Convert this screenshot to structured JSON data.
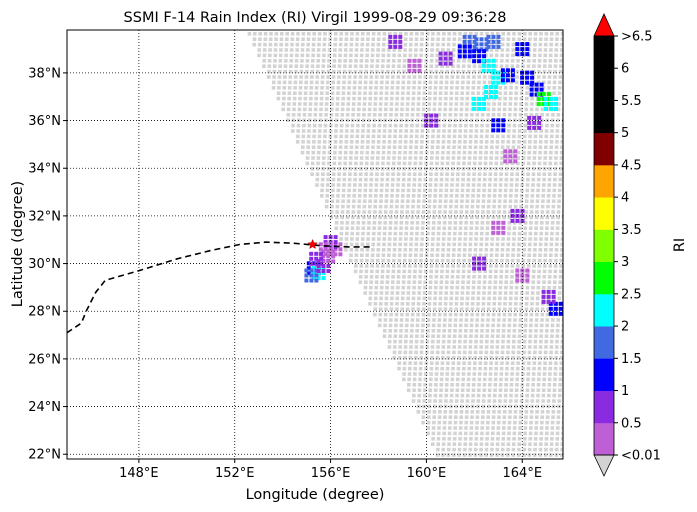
{
  "chart_data": {
    "type": "scatter",
    "title": "SSMI F-14 Rain Index (RI) Virgil 1999-08-29 09:36:28",
    "xlabel": "Longitude (degree)",
    "ylabel": "Latitude (degree)",
    "xlim": [
      145.0,
      165.7
    ],
    "ylim": [
      21.8,
      39.8
    ],
    "x_ticks": [
      148,
      152,
      156,
      160,
      164
    ],
    "x_tick_labels": [
      "148°E",
      "152°E",
      "156°E",
      "160°E",
      "164°E"
    ],
    "y_ticks": [
      22,
      24,
      26,
      28,
      30,
      32,
      34,
      36,
      38
    ],
    "y_tick_labels": [
      "22°N",
      "24°N",
      "26°N",
      "28°N",
      "30°N",
      "32°N",
      "34°N",
      "36°N",
      "38°N"
    ],
    "grid": "dotted",
    "colorbar": {
      "label": "RI",
      "levels": [
        0.01,
        0.5,
        1,
        1.5,
        2,
        2.5,
        3,
        3.5,
        4,
        4.5,
        5,
        5.5,
        6,
        6.5
      ],
      "tick_labels": [
        "<0.01",
        "0.5",
        "1",
        "1.5",
        "2",
        "2.5",
        "3",
        "3.5",
        "4",
        "4.5",
        "5",
        "5.5",
        "6",
        ">6.5"
      ],
      "colors": [
        "#bf5fd6",
        "#8a2be2",
        "#0000ff",
        "#4169e1",
        "#00ffff",
        "#00ff00",
        "#7fff00",
        "#ffff00",
        "#ffa500",
        "#800000",
        "#000000",
        "#000000",
        "#000000"
      ],
      "under_color": "#d3d3d3",
      "over_color": "#ff0000"
    },
    "swath": {
      "description_color": "#d3d3d3",
      "corners": [
        [
          152.5,
          39.8
        ],
        [
          165.7,
          39.8
        ],
        [
          165.7,
          21.8
        ],
        [
          160.5,
          21.8
        ]
      ]
    },
    "storm_track": {
      "name": "Virgil",
      "points": [
        [
          145.0,
          27.1
        ],
        [
          145.6,
          27.5
        ],
        [
          145.8,
          28.0
        ],
        [
          146.2,
          28.8
        ],
        [
          146.6,
          29.3
        ],
        [
          148.0,
          29.7
        ],
        [
          149.6,
          30.2
        ],
        [
          151.0,
          30.55
        ],
        [
          152.2,
          30.8
        ],
        [
          153.3,
          30.9
        ],
        [
          154.5,
          30.85
        ],
        [
          155.6,
          30.75
        ],
        [
          156.7,
          30.7
        ],
        [
          157.8,
          30.7
        ]
      ],
      "current_position": [
        155.25,
        30.8
      ]
    },
    "rain_cells": [
      {
        "lon": 155.3,
        "lat": 29.8,
        "ri": 1.2
      },
      {
        "lon": 155.5,
        "lat": 29.6,
        "ri": 2.2
      },
      {
        "lon": 155.2,
        "lat": 29.5,
        "ri": 1.7
      },
      {
        "lon": 155.7,
        "lat": 29.9,
        "ri": 0.7
      },
      {
        "lon": 155.9,
        "lat": 30.3,
        "ri": 0.4
      },
      {
        "lon": 156.2,
        "lat": 30.6,
        "ri": 0.3
      },
      {
        "lon": 156.0,
        "lat": 30.9,
        "ri": 0.6
      },
      {
        "lon": 155.8,
        "lat": 30.6,
        "ri": 0.3
      },
      {
        "lon": 155.4,
        "lat": 30.2,
        "ri": 0.9
      },
      {
        "lon": 161.8,
        "lat": 39.3,
        "ri": 1.8
      },
      {
        "lon": 162.3,
        "lat": 39.2,
        "ri": 1.6
      },
      {
        "lon": 162.8,
        "lat": 39.3,
        "ri": 1.8
      },
      {
        "lon": 161.6,
        "lat": 38.9,
        "ri": 1.2
      },
      {
        "lon": 162.2,
        "lat": 38.7,
        "ri": 1.1
      },
      {
        "lon": 162.6,
        "lat": 38.3,
        "ri": 2.1
      },
      {
        "lon": 163.0,
        "lat": 37.8,
        "ri": 2.3
      },
      {
        "lon": 162.7,
        "lat": 37.2,
        "ri": 2.0
      },
      {
        "lon": 162.2,
        "lat": 36.7,
        "ri": 2.2
      },
      {
        "lon": 163.4,
        "lat": 37.9,
        "ri": 1.2
      },
      {
        "lon": 164.2,
        "lat": 37.8,
        "ri": 1.1
      },
      {
        "lon": 164.6,
        "lat": 37.3,
        "ri": 1.2
      },
      {
        "lon": 164.9,
        "lat": 36.9,
        "ri": 2.8
      },
      {
        "lon": 165.2,
        "lat": 36.7,
        "ri": 2.2
      },
      {
        "lon": 164.0,
        "lat": 39.0,
        "ri": 1.1
      },
      {
        "lon": 160.8,
        "lat": 38.6,
        "ri": 0.6
      },
      {
        "lon": 159.5,
        "lat": 38.3,
        "ri": 0.4
      },
      {
        "lon": 158.7,
        "lat": 39.3,
        "ri": 0.6
      },
      {
        "lon": 160.2,
        "lat": 36.0,
        "ri": 0.5
      },
      {
        "lon": 163.0,
        "lat": 35.8,
        "ri": 1.0
      },
      {
        "lon": 164.5,
        "lat": 35.9,
        "ri": 0.5
      },
      {
        "lon": 163.5,
        "lat": 34.5,
        "ri": 0.4
      },
      {
        "lon": 163.8,
        "lat": 32.0,
        "ri": 0.8
      },
      {
        "lon": 163.0,
        "lat": 31.5,
        "ri": 0.4
      },
      {
        "lon": 164.0,
        "lat": 29.5,
        "ri": 0.4
      },
      {
        "lon": 165.4,
        "lat": 28.1,
        "ri": 1.2
      },
      {
        "lon": 165.1,
        "lat": 28.6,
        "ri": 0.8
      },
      {
        "lon": 162.2,
        "lat": 30.0,
        "ri": 0.5
      }
    ]
  }
}
